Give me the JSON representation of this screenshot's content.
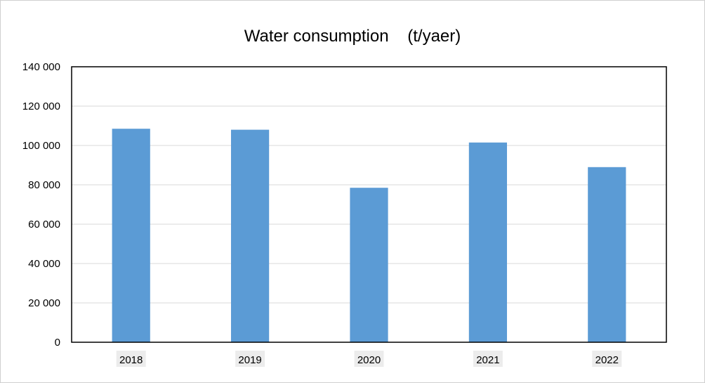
{
  "chart_data": {
    "type": "bar",
    "title": "Water consumption    (t/yaer)",
    "xlabel": "",
    "ylabel": "",
    "categories": [
      "2018",
      "2019",
      "2020",
      "2021",
      "2022"
    ],
    "values": [
      108500,
      108000,
      78500,
      101500,
      89000
    ],
    "ylim": [
      0,
      140000
    ],
    "yticks": [
      0,
      20000,
      40000,
      60000,
      80000,
      100000,
      120000,
      140000
    ],
    "ytick_labels": [
      "0",
      "20 000",
      "40 000",
      "60 000",
      "80 000",
      "100 000",
      "120 000",
      "140 000"
    ],
    "grid": true,
    "legend": "none",
    "bar_color": "#5b9bd5",
    "gridline_color": "#d9d9d9",
    "category_label_bg": "#ececec"
  }
}
